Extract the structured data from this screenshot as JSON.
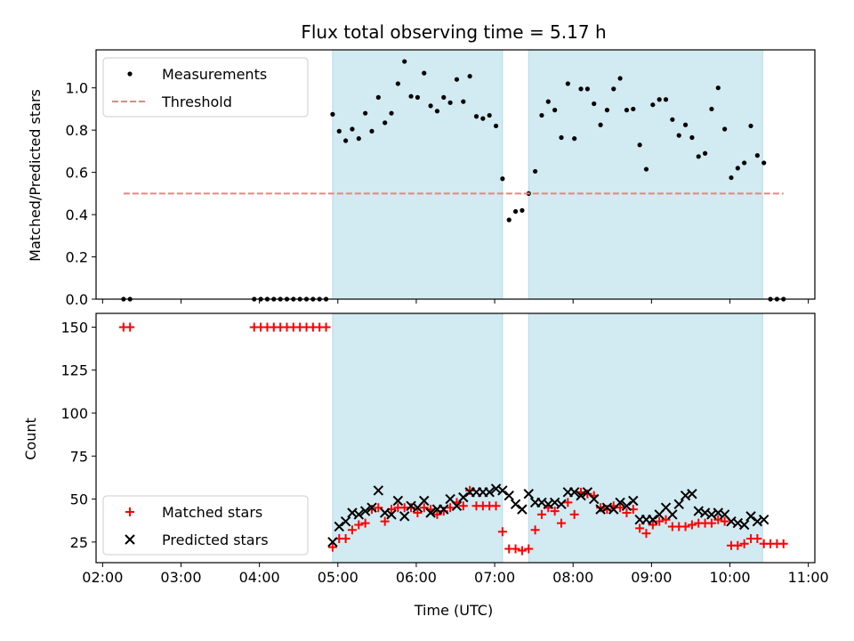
{
  "chart_data": [
    {
      "type": "scatter",
      "title": "Flux total observing time = 5.17 h",
      "xlabel": "",
      "ylabel": "Matched/Predicted stars",
      "x_unit": "time (UTC)",
      "xlim": [
        "01:55",
        "11:05"
      ],
      "ylim": [
        0,
        1.18
      ],
      "yticks": [
        0.0,
        0.2,
        0.4,
        0.6,
        0.8,
        1.0
      ],
      "ytick_labels": [
        "0.0",
        "0.2",
        "0.4",
        "0.6",
        "0.8",
        "1.0"
      ],
      "grid": false,
      "legend_position": "top-left",
      "shaded_intervals": [
        [
          "04:56",
          "07:06"
        ],
        [
          "07:26",
          "10:25"
        ]
      ],
      "shade_color": "#add8e6",
      "series": [
        {
          "name": "Measurements",
          "marker": "dot",
          "color": "#000000",
          "x": [
            "02:16",
            "02:21",
            "03:56",
            "04:01",
            "04:06",
            "04:11",
            "04:16",
            "04:21",
            "04:26",
            "04:31",
            "04:36",
            "04:41",
            "04:46",
            "04:51",
            "04:56",
            "05:01",
            "05:06",
            "05:11",
            "05:16",
            "05:21",
            "05:26",
            "05:31",
            "05:36",
            "05:41",
            "05:46",
            "05:51",
            "05:56",
            "06:01",
            "06:06",
            "06:11",
            "06:16",
            "06:21",
            "06:26",
            "06:31",
            "06:36",
            "06:41",
            "06:46",
            "06:51",
            "06:56",
            "07:01",
            "07:06",
            "07:11",
            "07:16",
            "07:21",
            "07:26",
            "07:31",
            "07:36",
            "07:41",
            "07:46",
            "07:51",
            "07:56",
            "08:01",
            "08:06",
            "08:11",
            "08:16",
            "08:21",
            "08:26",
            "08:31",
            "08:36",
            "08:41",
            "08:46",
            "08:51",
            "08:56",
            "09:01",
            "09:06",
            "09:11",
            "09:16",
            "09:21",
            "09:26",
            "09:31",
            "09:36",
            "09:41",
            "09:46",
            "09:51",
            "09:56",
            "10:01",
            "10:06",
            "10:11",
            "10:16",
            "10:21",
            "10:26",
            "10:31",
            "10:36",
            "10:41"
          ],
          "y": [
            0,
            0,
            0,
            0,
            0,
            0,
            0,
            0,
            0,
            0,
            0,
            0,
            0,
            0,
            0.875,
            0.795,
            0.75,
            0.805,
            0.76,
            0.88,
            0.795,
            0.955,
            0.835,
            0.88,
            1.02,
            1.125,
            0.96,
            0.955,
            1.07,
            0.915,
            0.89,
            0.955,
            0.93,
            1.04,
            0.935,
            1.055,
            0.865,
            0.855,
            0.87,
            0.82,
            0.57,
            0.375,
            0.415,
            0.42,
            0.5,
            0.605,
            0.87,
            0.935,
            0.895,
            0.765,
            1.02,
            0.76,
            0.995,
            0.995,
            0.925,
            0.825,
            0.895,
            0.995,
            1.045,
            0.895,
            0.9,
            0.73,
            0.615,
            0.92,
            0.945,
            0.945,
            0.85,
            0.775,
            0.825,
            0.765,
            0.675,
            0.69,
            0.9,
            1.0,
            0.805,
            0.575,
            0.62,
            0.645,
            0.82,
            0.68,
            0.645,
            0,
            0,
            0
          ]
        },
        {
          "name": "Threshold",
          "style": "dashed-line",
          "color": "#f08080",
          "x": [
            "02:16",
            "10:41"
          ],
          "y": [
            0.5,
            0.5
          ]
        }
      ]
    },
    {
      "type": "scatter",
      "title": "",
      "xlabel": "Time (UTC)",
      "ylabel": "Count",
      "xlim": [
        "01:55",
        "11:05"
      ],
      "ylim": [
        13,
        158
      ],
      "xtick_labels": [
        "02:00",
        "03:00",
        "04:00",
        "05:00",
        "06:00",
        "07:00",
        "08:00",
        "09:00",
        "10:00",
        "11:00"
      ],
      "yticks": [
        25,
        50,
        75,
        100,
        125,
        150
      ],
      "ytick_labels": [
        "25",
        "50",
        "75",
        "100",
        "125",
        "150"
      ],
      "grid": false,
      "legend_position": "bottom-left",
      "shaded_intervals": [
        [
          "04:56",
          "07:06"
        ],
        [
          "07:26",
          "10:25"
        ]
      ],
      "shade_color": "#add8e6",
      "series": [
        {
          "name": "Matched stars",
          "marker": "plus",
          "color": "#ff0000",
          "x": [
            "02:16",
            "02:21",
            "03:56",
            "04:01",
            "04:06",
            "04:11",
            "04:16",
            "04:21",
            "04:26",
            "04:31",
            "04:36",
            "04:41",
            "04:46",
            "04:51",
            "04:56",
            "05:01",
            "05:06",
            "05:11",
            "05:16",
            "05:21",
            "05:26",
            "05:31",
            "05:36",
            "05:41",
            "05:46",
            "05:51",
            "05:56",
            "06:01",
            "06:06",
            "06:11",
            "06:16",
            "06:21",
            "06:26",
            "06:31",
            "06:36",
            "06:41",
            "06:46",
            "06:51",
            "06:56",
            "07:01",
            "07:06",
            "07:11",
            "07:16",
            "07:21",
            "07:26",
            "07:31",
            "07:36",
            "07:41",
            "07:46",
            "07:51",
            "07:56",
            "08:01",
            "08:06",
            "08:11",
            "08:16",
            "08:21",
            "08:26",
            "08:31",
            "08:36",
            "08:41",
            "08:46",
            "08:51",
            "08:56",
            "09:01",
            "09:06",
            "09:11",
            "09:16",
            "09:21",
            "09:26",
            "09:31",
            "09:36",
            "09:41",
            "09:46",
            "09:51",
            "09:56",
            "10:01",
            "10:06",
            "10:11",
            "10:16",
            "10:21",
            "10:26",
            "10:31",
            "10:36",
            "10:41"
          ],
          "y": [
            150,
            150,
            150,
            150,
            150,
            150,
            150,
            150,
            150,
            150,
            150,
            150,
            150,
            150,
            22,
            27,
            27,
            32,
            35,
            36,
            44,
            45,
            37,
            44,
            45,
            45,
            45,
            42,
            45,
            44,
            41,
            43,
            45,
            48,
            46,
            55,
            46,
            46,
            46,
            46,
            31,
            21,
            21,
            20,
            21,
            32,
            41,
            45,
            43,
            36,
            48,
            41,
            54,
            53,
            52,
            45,
            44,
            46,
            45,
            42,
            44,
            33,
            30,
            35,
            37,
            38,
            34,
            34,
            34,
            35,
            36,
            36,
            36,
            38,
            37,
            23,
            23,
            24,
            27,
            27,
            24,
            24,
            24,
            24
          ]
        },
        {
          "name": "Predicted stars",
          "marker": "x",
          "color": "#000000",
          "x": [
            "04:56",
            "05:01",
            "05:06",
            "05:11",
            "05:16",
            "05:21",
            "05:26",
            "05:31",
            "05:36",
            "05:41",
            "05:46",
            "05:51",
            "05:56",
            "06:01",
            "06:06",
            "06:11",
            "06:16",
            "06:21",
            "06:26",
            "06:31",
            "06:36",
            "06:41",
            "06:46",
            "06:51",
            "06:56",
            "07:01",
            "07:06",
            "07:11",
            "07:16",
            "07:21",
            "07:26",
            "07:31",
            "07:36",
            "07:41",
            "07:46",
            "07:51",
            "07:56",
            "08:01",
            "08:06",
            "08:11",
            "08:16",
            "08:21",
            "08:26",
            "08:31",
            "08:36",
            "08:41",
            "08:46",
            "08:51",
            "08:56",
            "09:01",
            "09:06",
            "09:11",
            "09:16",
            "09:21",
            "09:26",
            "09:31",
            "09:36",
            "09:41",
            "09:46",
            "09:51",
            "09:56",
            "10:01",
            "10:06",
            "10:11",
            "10:16",
            "10:21",
            "10:26"
          ],
          "y": [
            25,
            34,
            37,
            42,
            41,
            43,
            45,
            55,
            42,
            41,
            49,
            40,
            46,
            45,
            49,
            42,
            44,
            44,
            50,
            46,
            51,
            54,
            54,
            54,
            54,
            56,
            55,
            52,
            47,
            44,
            53,
            48,
            48,
            47,
            48,
            47,
            54,
            54,
            52,
            54,
            50,
            44,
            45,
            44,
            48,
            46,
            49,
            38,
            38,
            38,
            41,
            45,
            41,
            47,
            52,
            53,
            43,
            42,
            41,
            42,
            41,
            37,
            36,
            35,
            40,
            37,
            38
          ]
        }
      ]
    }
  ]
}
